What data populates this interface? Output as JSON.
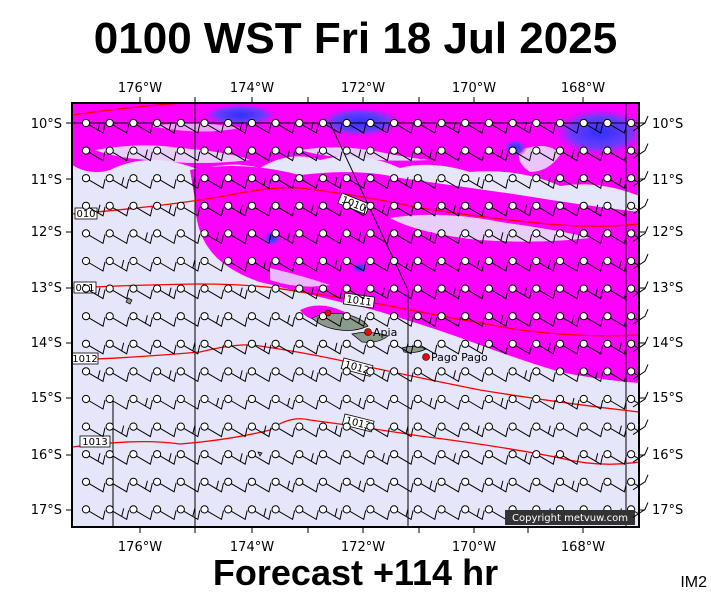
{
  "header": {
    "title": "0100 WST Fri 18 Jul 2025"
  },
  "footer": {
    "forecast": "Forecast +114 hr",
    "tag": "IM2"
  },
  "map": {
    "lon_labels": [
      "176°W",
      "174°W",
      "172°W",
      "170°W",
      "168°W"
    ],
    "lat_labels": [
      "10°S",
      "11°S",
      "12°S",
      "13°S",
      "14°S",
      "15°S",
      "16°S",
      "17°S"
    ],
    "places": [
      {
        "name": "Apia",
        "lon": -171.77,
        "lat": -13.83
      },
      {
        "name": "Pago Pago",
        "lon": -170.7,
        "lat": -14.27
      }
    ],
    "isobars": [
      {
        "label": "1010",
        "inline_label": "1010"
      },
      {
        "label": "010",
        "inline_label": ""
      },
      {
        "label": "1011",
        "inline_label": "1011"
      },
      {
        "label": "011",
        "inline_label": ""
      },
      {
        "label": "1012",
        "inline_label": "1012"
      },
      {
        "label": "1012",
        "inline_label": ""
      },
      {
        "label": "1013",
        "inline_label": "1013"
      },
      {
        "label": "1013",
        "inline_label": ""
      }
    ],
    "copyright": "Copyright metvuw.com",
    "colors": {
      "sea": "#e6e6fa",
      "rain_light": "#ff00ff",
      "rain_heavy": "#4040ff",
      "isobar": "#ff0000",
      "land": "#8c9a8c",
      "place_marker": "#ff0000"
    }
  }
}
